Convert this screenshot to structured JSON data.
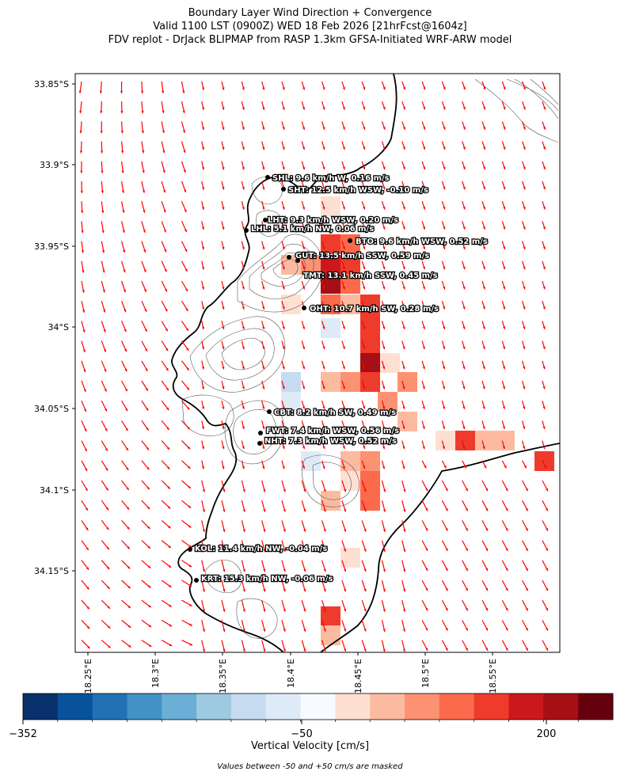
{
  "title": {
    "line1": "Boundary Layer Wind Direction + Convergence",
    "line2": "Valid 1100 LST (0900Z) WED 18 Feb 2026 [21hrFcst@1604z]",
    "line3": "FDV replot - DrJack BLIPMAP from RASP 1.3km GFSA-Initiated WRF-ARW model"
  },
  "y_ticks": [
    "33.85°S",
    "33.9°S",
    "33.95°S",
    "34°S",
    "34.05°S",
    "34.1°S",
    "34.15°S"
  ],
  "x_ticks": [
    "18.25°E",
    "18.3°E",
    "18.35°E",
    "18.4°E",
    "18.45°E",
    "18.5°E",
    "18.55°E"
  ],
  "stations": [
    {
      "label": "SHL: 9.6 km/h W, 0.16 m/s"
    },
    {
      "label": "SHT: 12.5 km/h WSW, -0.10 m/s"
    },
    {
      "label": "LHT: 9.3 km/h WSW, 0.20 m/s"
    },
    {
      "label": "LHL: 5.1 km/h NW, 0.06 m/s"
    },
    {
      "label": "BTO: 9.6 km/h WSW, 0.52 m/s"
    },
    {
      "label": "GUT: 13.5 km/h SSW, 0.59 m/s"
    },
    {
      "label": "TMT: 13.1 km/h SSW, 0.45 m/s"
    },
    {
      "label": "OHT: 10.7 km/h SW, 0.28 m/s"
    },
    {
      "label": "CBT: 8.2 km/h SW, 0.49 m/s"
    },
    {
      "label": "FWT: 7.4 km/h WSW, 0.56 m/s"
    },
    {
      "label": "NHT: 7.3 km/h WSW, 0.52 m/s"
    },
    {
      "label": "KOL: 11.4 km/h NW, -0.04 m/s"
    },
    {
      "label": "KRT: 15.3 km/h NW, -0.06 m/s"
    }
  ],
  "colorbar": {
    "label": "Vertical Velocity [cm/s]",
    "note": "Values between -50 and +50 cm/s are masked",
    "tick_labels": [
      "−352",
      "−50",
      "200"
    ],
    "colors": [
      "#08306b",
      "#08519c",
      "#2171b5",
      "#4292c6",
      "#6baed6",
      "#9ecae1",
      "#c6dbef",
      "#deebf7",
      "#f7fbff",
      "#fee0d2",
      "#fcbba1",
      "#fc9272",
      "#fb6a4a",
      "#ef3b2c",
      "#cb181d",
      "#a50f15",
      "#67000d"
    ]
  },
  "wind_vector_color": "#ff0000",
  "coastline_color": "#000000"
}
